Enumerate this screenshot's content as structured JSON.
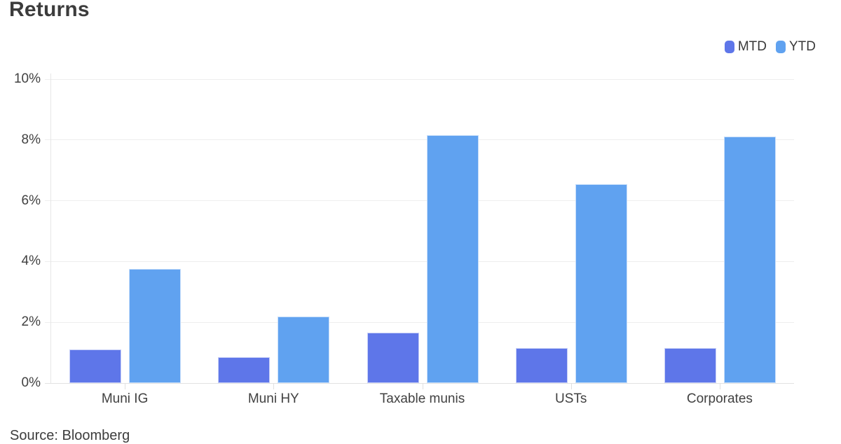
{
  "title": "Returns",
  "legend": {
    "items": [
      {
        "label": "MTD",
        "color": "#5E76E9"
      },
      {
        "label": "YTD",
        "color": "#60A2F0"
      }
    ]
  },
  "source_note": "Source: Bloomberg",
  "chart_data": {
    "type": "bar",
    "title": "Returns",
    "categories": [
      "Muni IG",
      "Muni HY",
      "Taxable munis",
      "USTs",
      "Corporates"
    ],
    "series": [
      {
        "name": "MTD",
        "color": "#5E76E9",
        "values": [
          1.1,
          0.85,
          1.65,
          1.15,
          1.15
        ]
      },
      {
        "name": "YTD",
        "color": "#60A2F0",
        "values": [
          3.75,
          2.2,
          8.15,
          6.55,
          8.1
        ]
      }
    ],
    "value_unit": "%",
    "xlabel": "",
    "ylabel": "",
    "ylim": [
      0,
      10
    ],
    "y_ticks": [
      "0%",
      "2%",
      "4%",
      "6%",
      "8%",
      "10%"
    ],
    "grid": true,
    "legend_position": "top-right",
    "annotation": "Source: Bloomberg"
  }
}
